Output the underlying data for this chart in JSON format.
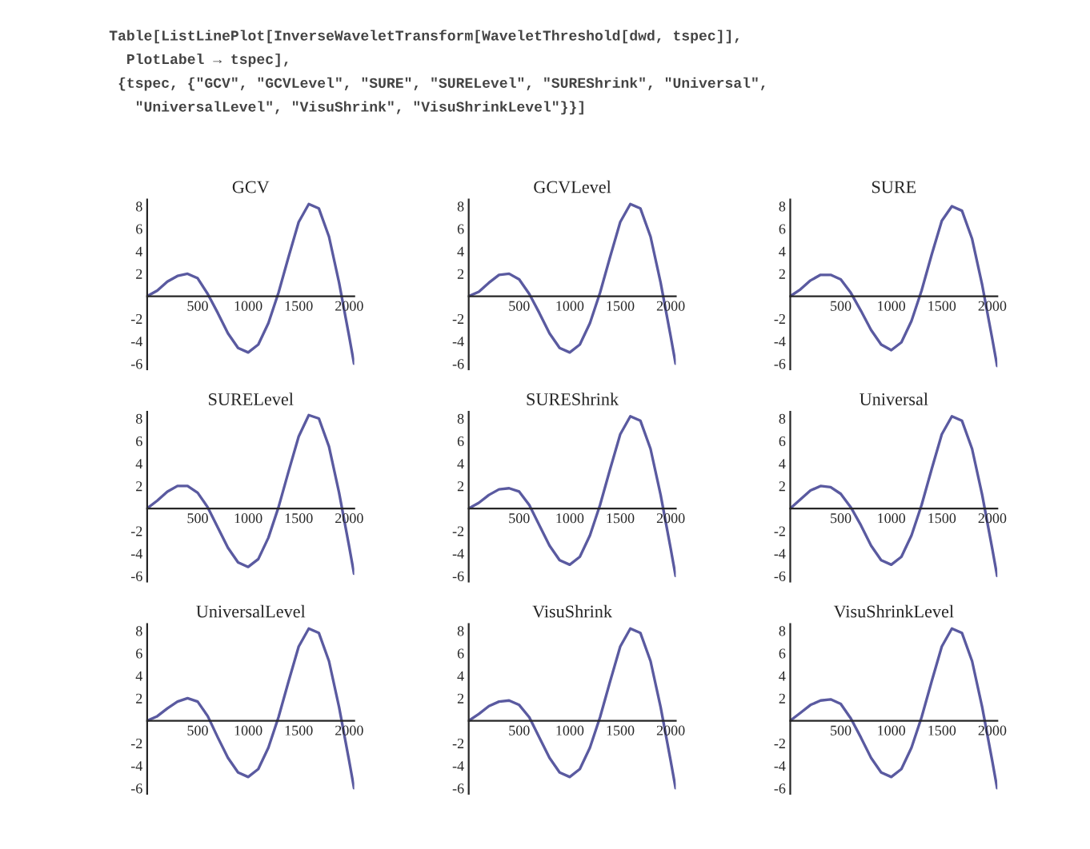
{
  "chart_data": [
    {
      "type": "line",
      "title": "GCV",
      "annotations": [
        "Table[ListLinePlot[InverseWaveletTransform[WaveletThreshold[dwd, tspec]],",
        "  PlotLabel → tspec],",
        " {tspec, {\"GCV\", \"GCVLevel\", \"SURE\", \"SURELevel\", \"SUREShrink\", \"Universal\",",
        "   \"UniversalLevel\", \"VisuShrink\", \"VisuShrinkLevel\"}}]"
      ],
      "x": [
        0,
        100,
        200,
        300,
        400,
        500,
        600,
        700,
        800,
        900,
        1000,
        1100,
        1200,
        1300,
        1400,
        1500,
        1600,
        1700,
        1800,
        1900,
        2000,
        2048
      ],
      "series": [
        {
          "color": "#5a5aa0",
          "values": [
            0,
            0.5,
            1.3,
            1.8,
            2.0,
            1.6,
            0.2,
            -1.5,
            -3.3,
            -4.6,
            -5.0,
            -4.3,
            -2.4,
            0.3,
            3.5,
            6.6,
            8.2,
            7.8,
            5.3,
            1.2,
            -3.6,
            -6
          ]
        }
      ],
      "xlim": [
        0,
        2050
      ],
      "ylim": [
        -6.5,
        8.6
      ],
      "xticks": [
        500,
        1000,
        1500,
        2000
      ],
      "yticks": [
        -6,
        -4,
        -2,
        2,
        4,
        6,
        8
      ],
      "grid": false,
      "legend": false
    },
    {
      "type": "line",
      "title": "GCVLevel",
      "x": [
        0,
        100,
        200,
        300,
        400,
        500,
        600,
        700,
        800,
        900,
        1000,
        1100,
        1200,
        1300,
        1400,
        1500,
        1600,
        1700,
        1800,
        1900,
        2000,
        2048
      ],
      "series": [
        {
          "color": "#5a5aa0",
          "values": [
            0,
            0.4,
            1.2,
            1.9,
            2.0,
            1.5,
            0.2,
            -1.5,
            -3.3,
            -4.6,
            -5.0,
            -4.3,
            -2.4,
            0.3,
            3.5,
            6.6,
            8.2,
            7.8,
            5.3,
            1.2,
            -3.6,
            -6
          ]
        }
      ],
      "xlim": [
        0,
        2050
      ],
      "ylim": [
        -6.5,
        8.6
      ],
      "xticks": [
        500,
        1000,
        1500,
        2000
      ],
      "yticks": [
        -6,
        -4,
        -2,
        2,
        4,
        6,
        8
      ],
      "grid": false,
      "legend": false
    },
    {
      "type": "line",
      "title": "SURE",
      "x": [
        0,
        100,
        200,
        300,
        400,
        500,
        600,
        700,
        800,
        900,
        1000,
        1100,
        1200,
        1300,
        1400,
        1500,
        1600,
        1700,
        1800,
        1900,
        2000,
        2048
      ],
      "series": [
        {
          "color": "#5a5aa0",
          "values": [
            0,
            0.6,
            1.4,
            1.9,
            1.9,
            1.5,
            0.3,
            -1.3,
            -3.0,
            -4.3,
            -4.8,
            -4.1,
            -2.2,
            0.5,
            3.7,
            6.7,
            8.0,
            7.6,
            5.1,
            1.0,
            -3.8,
            -6.2
          ]
        }
      ],
      "xlim": [
        0,
        2050
      ],
      "ylim": [
        -6.5,
        8.6
      ],
      "xticks": [
        500,
        1000,
        1500,
        2000
      ],
      "yticks": [
        -6,
        -4,
        -2,
        2,
        4,
        6,
        8
      ],
      "grid": false,
      "legend": false
    },
    {
      "type": "line",
      "title": "SURELevel",
      "x": [
        0,
        100,
        200,
        300,
        400,
        500,
        600,
        700,
        800,
        900,
        1000,
        1100,
        1200,
        1300,
        1400,
        1500,
        1600,
        1700,
        1800,
        1900,
        2000,
        2048
      ],
      "series": [
        {
          "color": "#5a5aa0",
          "values": [
            0,
            0.7,
            1.5,
            2.0,
            2.0,
            1.4,
            0.1,
            -1.7,
            -3.5,
            -4.8,
            -5.2,
            -4.5,
            -2.6,
            0.1,
            3.3,
            6.4,
            8.3,
            8.0,
            5.5,
            1.4,
            -3.4,
            -5.8
          ]
        }
      ],
      "xlim": [
        0,
        2050
      ],
      "ylim": [
        -6.5,
        8.6
      ],
      "xticks": [
        500,
        1000,
        1500,
        2000
      ],
      "yticks": [
        -6,
        -4,
        -2,
        2,
        4,
        6,
        8
      ],
      "grid": false,
      "legend": false
    },
    {
      "type": "line",
      "title": "SUREShrink",
      "x": [
        0,
        100,
        200,
        300,
        400,
        500,
        600,
        700,
        800,
        900,
        1000,
        1100,
        1200,
        1300,
        1400,
        1500,
        1600,
        1700,
        1800,
        1900,
        2000,
        2048
      ],
      "series": [
        {
          "color": "#5a5aa0",
          "values": [
            0,
            0.5,
            1.2,
            1.7,
            1.8,
            1.5,
            0.3,
            -1.5,
            -3.3,
            -4.6,
            -5.0,
            -4.3,
            -2.4,
            0.3,
            3.5,
            6.6,
            8.2,
            7.8,
            5.3,
            1.2,
            -3.6,
            -6
          ]
        }
      ],
      "xlim": [
        0,
        2050
      ],
      "ylim": [
        -6.5,
        8.6
      ],
      "xticks": [
        500,
        1000,
        1500,
        2000
      ],
      "yticks": [
        -6,
        -4,
        -2,
        2,
        4,
        6,
        8
      ],
      "grid": false,
      "legend": false
    },
    {
      "type": "line",
      "title": "Universal",
      "x": [
        0,
        100,
        200,
        300,
        400,
        500,
        600,
        700,
        800,
        900,
        1000,
        1100,
        1200,
        1300,
        1400,
        1500,
        1600,
        1700,
        1800,
        1900,
        2000,
        2048
      ],
      "series": [
        {
          "color": "#5a5aa0",
          "values": [
            0,
            0.8,
            1.6,
            2.0,
            1.9,
            1.3,
            0.1,
            -1.5,
            -3.3,
            -4.6,
            -5.0,
            -4.3,
            -2.4,
            0.3,
            3.5,
            6.6,
            8.2,
            7.8,
            5.3,
            1.2,
            -3.6,
            -6
          ]
        }
      ],
      "xlim": [
        0,
        2050
      ],
      "ylim": [
        -6.5,
        8.6
      ],
      "xticks": [
        500,
        1000,
        1500,
        2000
      ],
      "yticks": [
        -6,
        -4,
        -2,
        2,
        4,
        6,
        8
      ],
      "grid": false,
      "legend": false
    },
    {
      "type": "line",
      "title": "UniversalLevel",
      "x": [
        0,
        100,
        200,
        300,
        400,
        500,
        600,
        700,
        800,
        900,
        1000,
        1100,
        1200,
        1300,
        1400,
        1500,
        1600,
        1700,
        1800,
        1900,
        2000,
        2048
      ],
      "series": [
        {
          "color": "#5a5aa0",
          "values": [
            0,
            0.4,
            1.1,
            1.7,
            2.0,
            1.7,
            0.4,
            -1.5,
            -3.3,
            -4.6,
            -5.0,
            -4.3,
            -2.4,
            0.3,
            3.5,
            6.6,
            8.2,
            7.8,
            5.3,
            1.2,
            -3.6,
            -6
          ]
        }
      ],
      "xlim": [
        0,
        2050
      ],
      "ylim": [
        -6.5,
        8.6
      ],
      "xticks": [
        500,
        1000,
        1500,
        2000
      ],
      "yticks": [
        -6,
        -4,
        -2,
        2,
        4,
        6,
        8
      ],
      "grid": false,
      "legend": false
    },
    {
      "type": "line",
      "title": "VisuShrink",
      "x": [
        0,
        100,
        200,
        300,
        400,
        500,
        600,
        700,
        800,
        900,
        1000,
        1100,
        1200,
        1300,
        1400,
        1500,
        1600,
        1700,
        1800,
        1900,
        2000,
        2048
      ],
      "series": [
        {
          "color": "#5a5aa0",
          "values": [
            0,
            0.6,
            1.3,
            1.7,
            1.8,
            1.4,
            0.3,
            -1.5,
            -3.3,
            -4.6,
            -5.0,
            -4.3,
            -2.4,
            0.3,
            3.5,
            6.6,
            8.2,
            7.8,
            5.3,
            1.2,
            -3.6,
            -6
          ]
        }
      ],
      "xlim": [
        0,
        2050
      ],
      "ylim": [
        -6.5,
        8.6
      ],
      "xticks": [
        500,
        1000,
        1500,
        2000
      ],
      "yticks": [
        -6,
        -4,
        -2,
        2,
        4,
        6,
        8
      ],
      "grid": false,
      "legend": false
    },
    {
      "type": "line",
      "title": "VisuShrinkLevel",
      "x": [
        0,
        100,
        200,
        300,
        400,
        500,
        600,
        700,
        800,
        900,
        1000,
        1100,
        1200,
        1300,
        1400,
        1500,
        1600,
        1700,
        1800,
        1900,
        2000,
        2048
      ],
      "series": [
        {
          "color": "#5a5aa0",
          "values": [
            0,
            0.7,
            1.4,
            1.8,
            1.9,
            1.5,
            0.2,
            -1.5,
            -3.3,
            -4.6,
            -5.0,
            -4.3,
            -2.4,
            0.3,
            3.5,
            6.6,
            8.2,
            7.8,
            5.3,
            1.2,
            -3.6,
            -6
          ]
        }
      ],
      "xlim": [
        0,
        2050
      ],
      "ylim": [
        -6.5,
        8.6
      ],
      "xticks": [
        500,
        1000,
        1500,
        2000
      ],
      "yticks": [
        -6,
        -4,
        -2,
        2,
        4,
        6,
        8
      ],
      "grid": false,
      "legend": false
    }
  ]
}
